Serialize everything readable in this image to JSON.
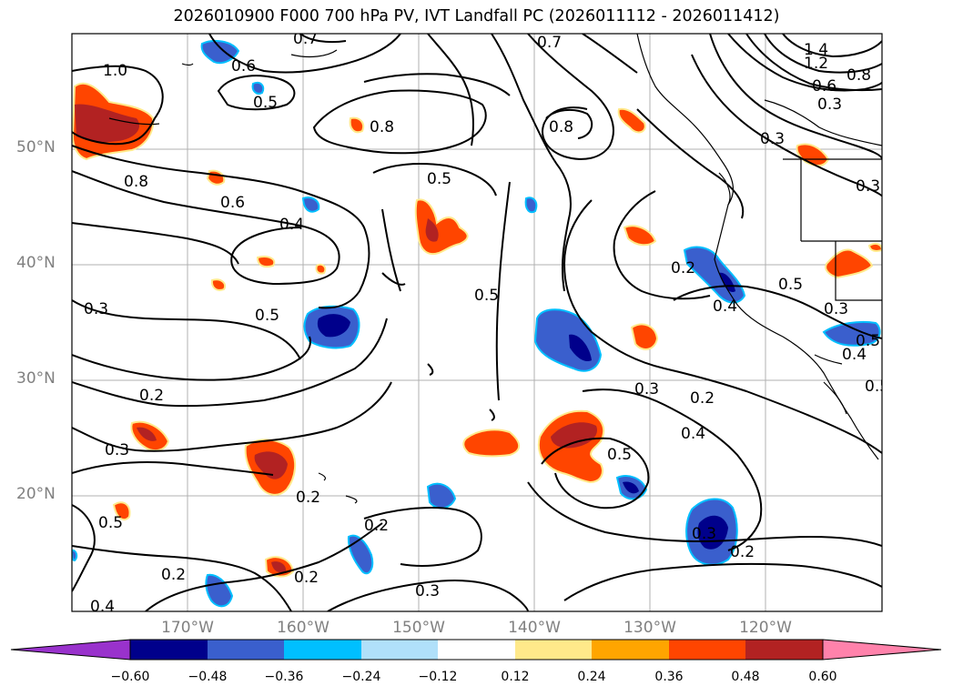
{
  "title": "2026010900 F000 700 hPa PV, IVT Landfall PC (2026011112 - 2026011412)",
  "latitude_labels": [
    "50°N",
    "40°N",
    "30°N",
    "20°N"
  ],
  "longitude_labels": [
    "170°W",
    "160°W",
    "150°W",
    "140°W",
    "130°W",
    "120°W"
  ],
  "map_extent": {
    "lon_west": -180,
    "lon_east": -110,
    "lat_south": 10,
    "lat_north": 60
  },
  "colorbar": {
    "ticks": [
      "−0.60",
      "−0.48",
      "−0.36",
      "−0.24",
      "−0.12",
      "0.12",
      "0.24",
      "0.36",
      "0.48",
      "0.60"
    ],
    "colors": {
      "under": "#9932cc",
      "bins": [
        "#00008b",
        "#3a5fcd",
        "#00bfff",
        "#b0e0fa",
        "#ffffff",
        "#ffe98a",
        "#ffa500",
        "#ff4500",
        "#b22222"
      ],
      "over": "#ff82ab"
    }
  },
  "contour_labels": [
    "1.0",
    "0.7",
    "0.6",
    "0.5",
    "0.8",
    "0.7",
    "0.8",
    "1.4",
    "1.2",
    "0.8",
    "0.6",
    "0.3",
    "0.8",
    "0.6",
    "0.4",
    "0.3",
    "0.5",
    "0.5",
    "0.2",
    "0.4",
    "0.5",
    "0.3",
    "0.2",
    "0.3",
    "0.2",
    "0.5",
    "0.4",
    "0.5",
    "0.2",
    "0.2",
    "0.3",
    "0.2",
    "0.3",
    "0.5",
    "0.2",
    "0.3",
    "0.4",
    "0.3",
    "0.5",
    "0.3",
    "0.2",
    "0.4",
    "0.5"
  ]
}
